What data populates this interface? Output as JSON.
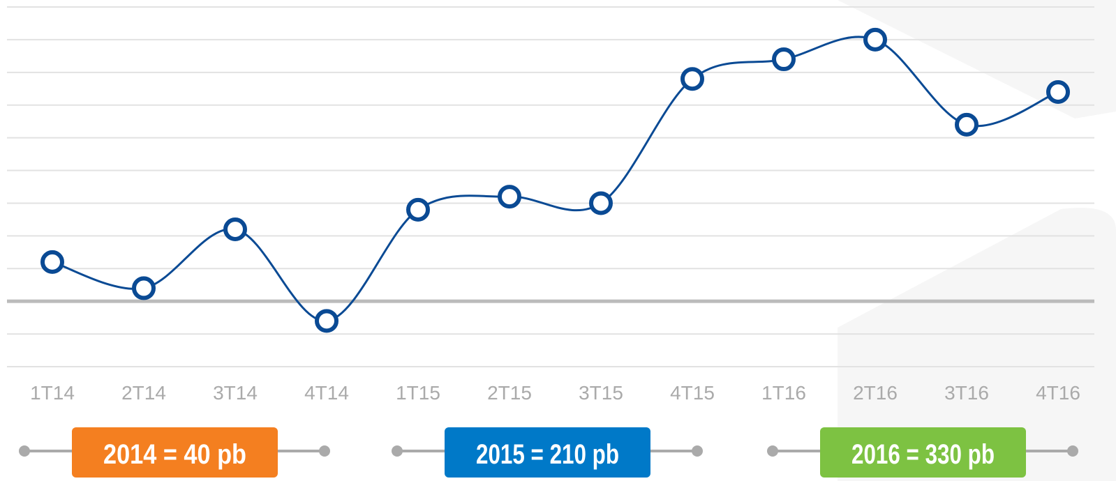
{
  "chart_data": {
    "type": "line",
    "categories": [
      "1T14",
      "2T14",
      "3T14",
      "4T14",
      "1T15",
      "2T15",
      "3T15",
      "4T15",
      "1T16",
      "2T16",
      "3T16",
      "4T16"
    ],
    "series": [
      {
        "color": "#0a4a94",
        "values": [
          1.2,
          0.4,
          2.2,
          -0.6,
          2.8,
          3.2,
          3.0,
          6.8,
          7.4,
          8.0,
          5.4,
          6.4
        ]
      }
    ],
    "ylim": [
      -2,
      9
    ],
    "yticks": [
      -2,
      -1,
      0,
      1,
      2,
      3,
      4,
      5,
      6,
      7,
      8,
      9
    ],
    "baseline": 0,
    "grid": true,
    "smooth": true,
    "annotations": [
      {
        "text": "2014 = 40 pb",
        "color": "#f47f20"
      },
      {
        "text": "2015 = 210 pb",
        "color": "#0079c8"
      },
      {
        "text": "2016 = 330 pb",
        "color": "#7dc242"
      }
    ]
  }
}
